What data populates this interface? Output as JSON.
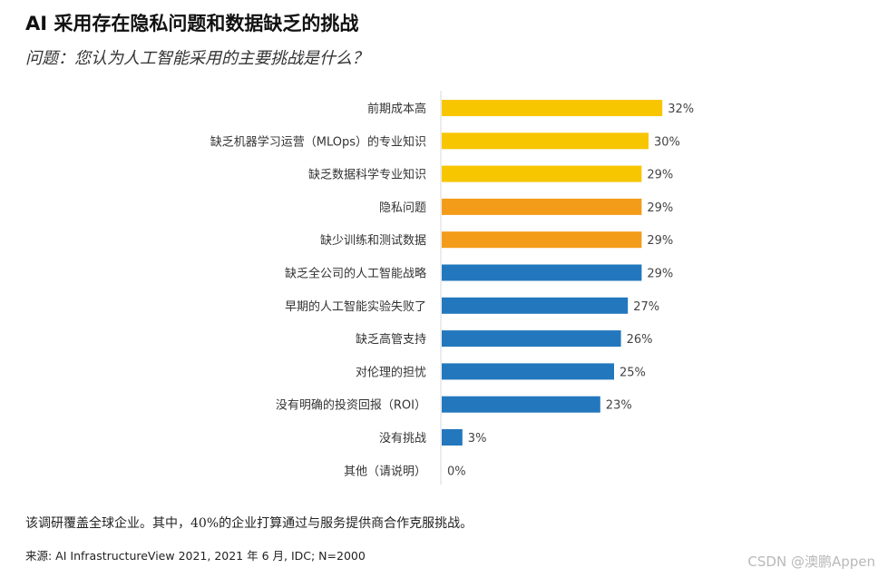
{
  "header": {
    "title": "AI 采用存在隐私问题和数据缺乏的挑战",
    "subtitle": "问题：您认为人工智能采用的主要挑战是什么？"
  },
  "colors": {
    "yellow": "#F7C600",
    "orange": "#F39C1A",
    "blue": "#2378BD",
    "axis": "#d9d9d9"
  },
  "chart_data": {
    "type": "bar",
    "orientation": "horizontal",
    "categories": [
      "前期成本高",
      "缺乏机器学习运营（MLOps）的专业知识",
      "缺乏数据科学专业知识",
      "隐私问题",
      "缺少训练和测试数据",
      "缺乏全公司的人工智能战略",
      "早期的人工智能实验失败了",
      "缺乏高管支持",
      "对伦理的担忧",
      "没有明确的投资回报（ROI）",
      "没有挑战",
      "其他（请说明）"
    ],
    "values": [
      32,
      30,
      29,
      29,
      29,
      29,
      27,
      26,
      25,
      23,
      3,
      0
    ],
    "value_labels": [
      "32%",
      "30%",
      "29%",
      "29%",
      "29%",
      "29%",
      "27%",
      "26%",
      "25%",
      "23%",
      "3%",
      "0%"
    ],
    "bar_colors": [
      "yellow",
      "yellow",
      "yellow",
      "orange",
      "orange",
      "blue",
      "blue",
      "blue",
      "blue",
      "blue",
      "blue",
      "blue"
    ],
    "xlim": [
      0,
      40
    ],
    "grid": false,
    "title": "AI 采用存在隐私问题和数据缺乏的挑战",
    "xlabel": "",
    "ylabel": ""
  },
  "footer": {
    "note": "该调研覆盖全球企业。其中，40%的企业打算通过与服务提供商合作克服挑战。",
    "source": "来源: AI InfrastructureView 2021, 2021 年 6 月, IDC; N=2000",
    "watermark": "CSDN @澳鹏Appen"
  }
}
